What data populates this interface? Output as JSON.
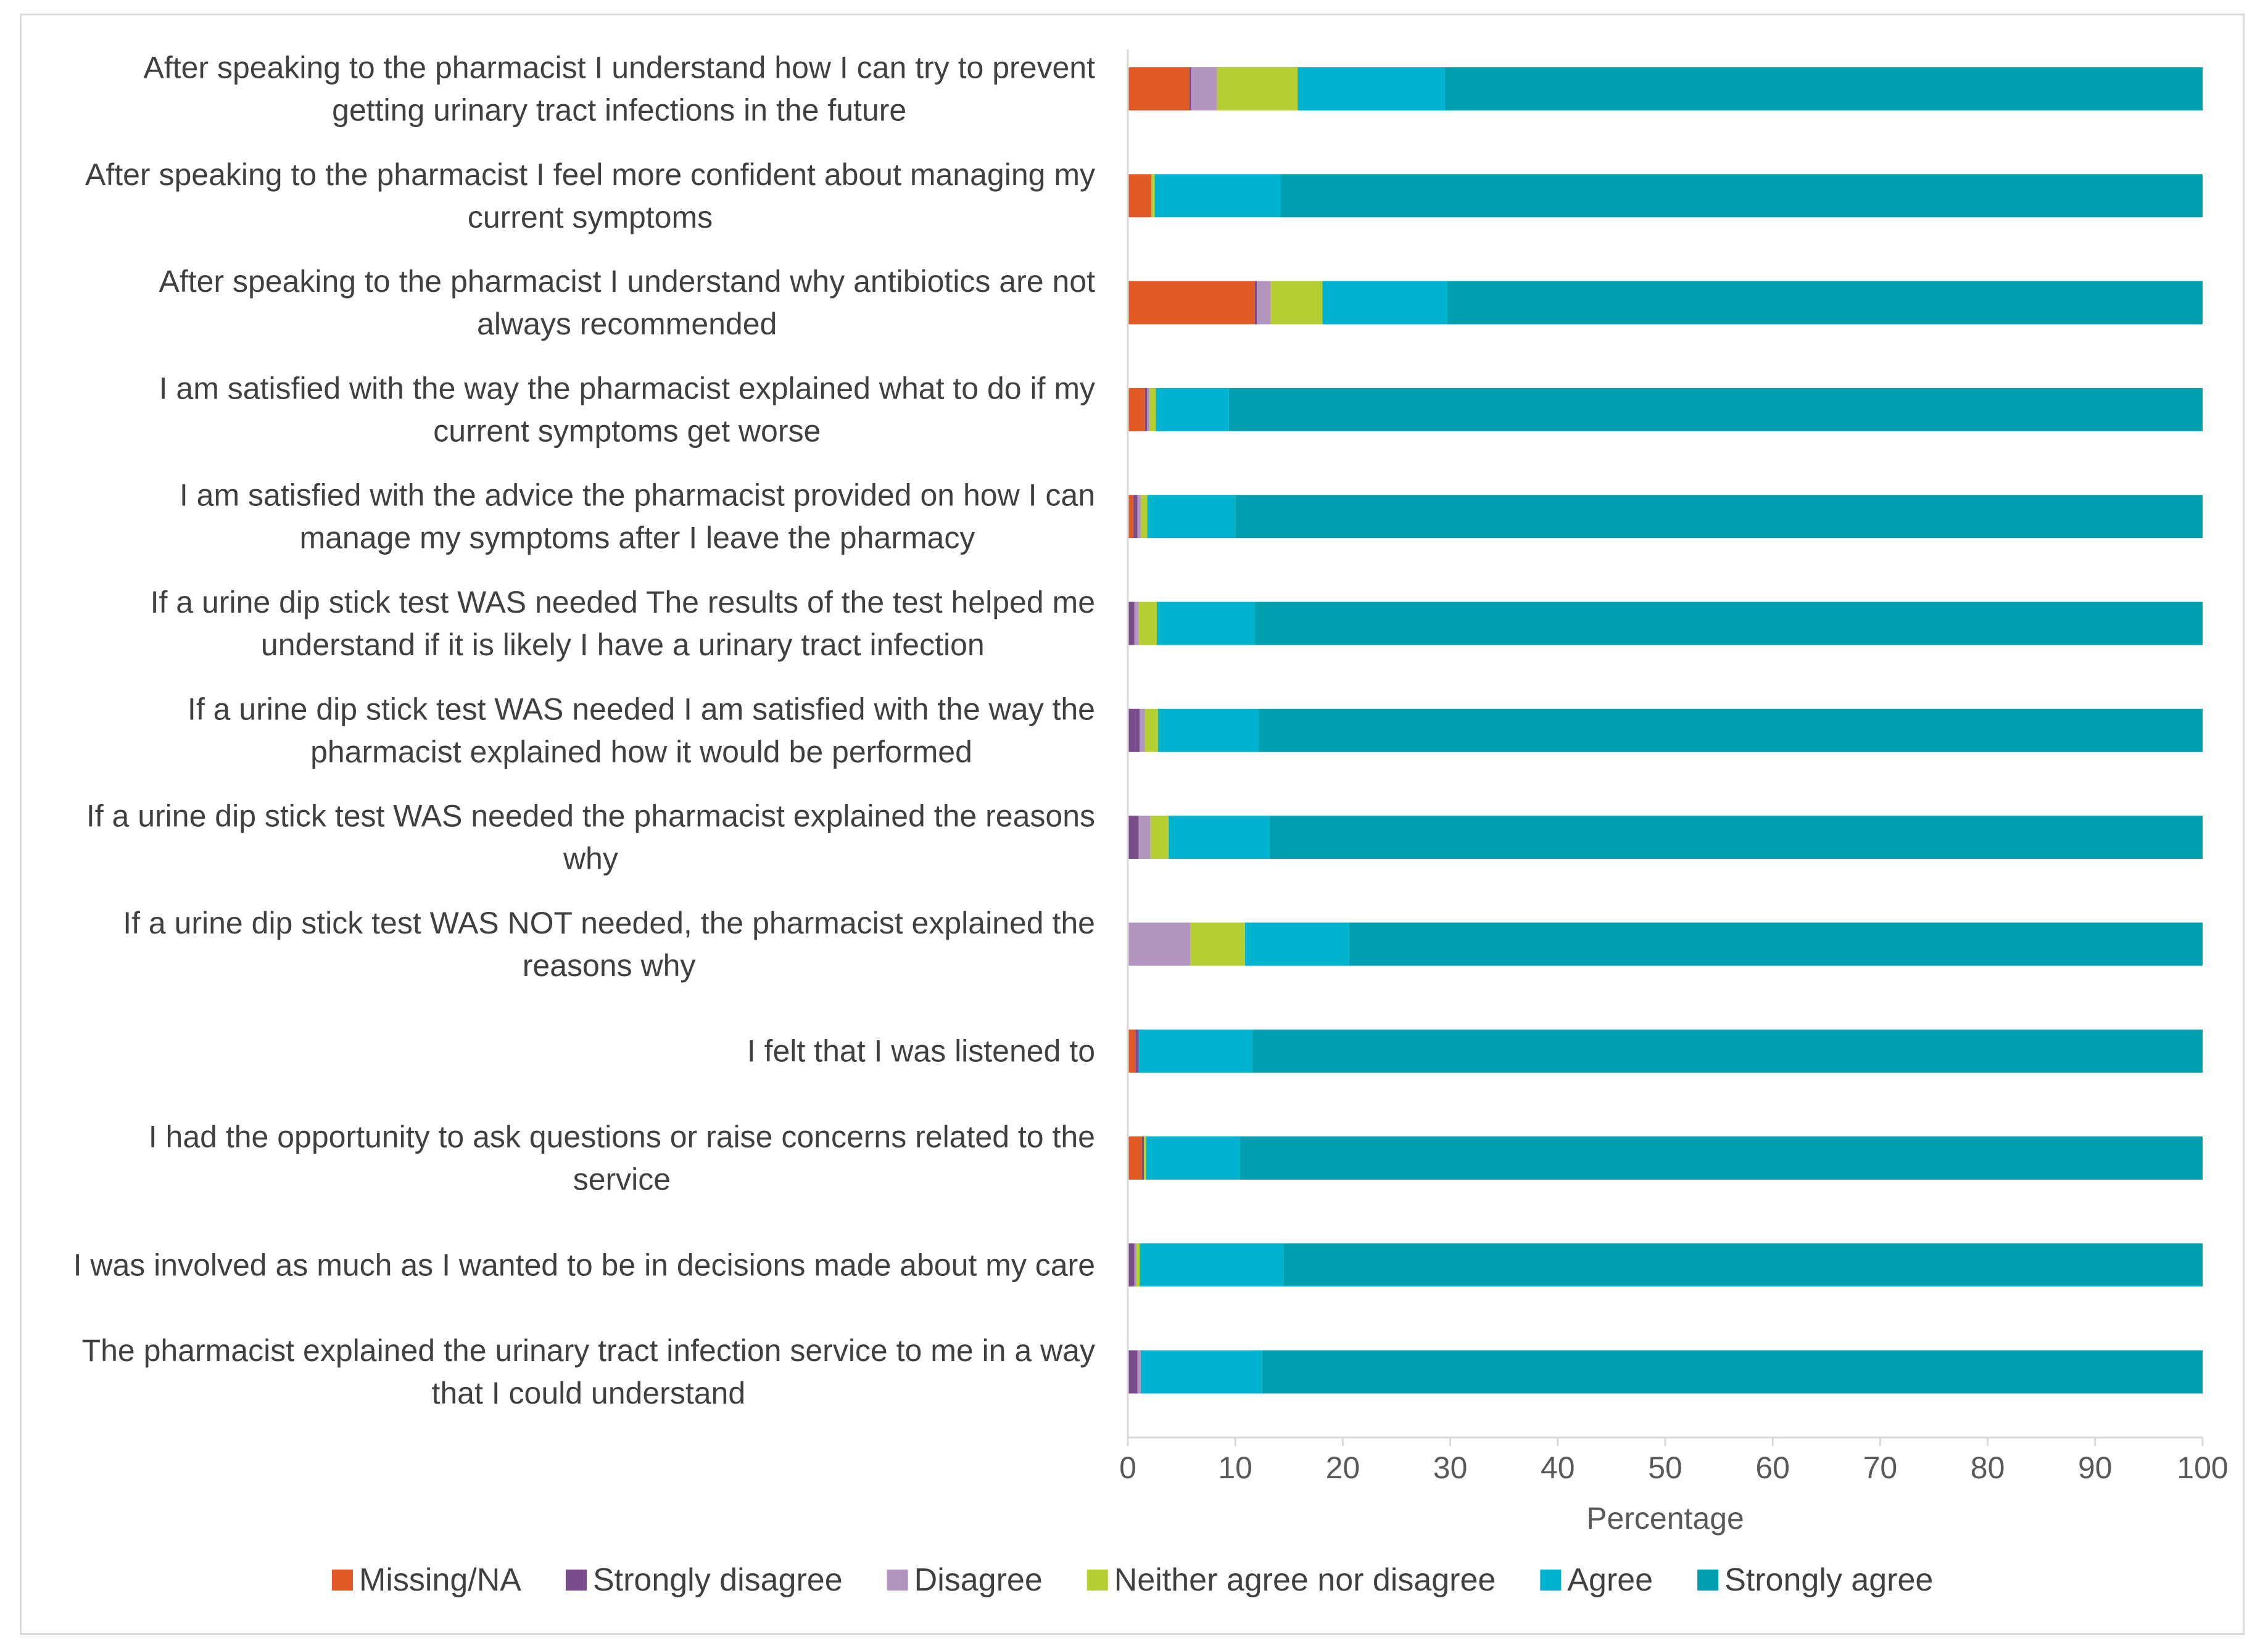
{
  "chart_data": {
    "type": "bar",
    "orientation": "horizontal",
    "stacked": true,
    "title": "",
    "xlabel": "Percentage",
    "ylabel": "",
    "xlim": [
      0,
      100
    ],
    "xticks": [
      "0",
      "10",
      "20",
      "30",
      "40",
      "50",
      "60",
      "70",
      "80",
      "90",
      "100"
    ],
    "grid": false,
    "legend_position": "bottom",
    "categories": [
      [
        "After speaking to the pharmacist I understand how I can try to prevent",
        "getting urinary tract infections in the future"
      ],
      [
        "After speaking to the pharmacist I feel more confident about managing my",
        "current symptoms"
      ],
      [
        "After speaking to the pharmacist I understand why antibiotics are not",
        "always recommended"
      ],
      [
        "I am satisfied with the way the pharmacist explained what to do if my",
        "current symptoms get worse"
      ],
      [
        "I am satisfied with the advice the pharmacist provided on how I can",
        "manage my symptoms after I leave the pharmacy"
      ],
      [
        "If a urine dip stick test WAS needed The results of the test helped me",
        "understand if it is likely I have a urinary tract infection"
      ],
      [
        "If a urine dip stick test WAS needed I am satisfied with the way the",
        "pharmacist explained how it would be performed"
      ],
      [
        "If a urine dip stick test WAS needed the pharmacist explained the reasons",
        "why"
      ],
      [
        "If a urine dip stick test WAS NOT needed, the pharmacist explained the",
        "reasons why"
      ],
      [
        "I felt that I was listened to"
      ],
      [
        "I had the opportunity to ask questions or raise concerns related to the",
        "service"
      ],
      [
        "I was involved as much as I wanted to be in decisions made about my care"
      ],
      [
        "The pharmacist explained the urinary tract infection service to me in a way",
        "that I could understand"
      ]
    ],
    "series": [
      {
        "name": "Missing/NA",
        "color": "#e05a26",
        "values": [
          5.7,
          2.2,
          11.8,
          1.6,
          0.5,
          0.0,
          0.0,
          0.0,
          0.0,
          0.7,
          1.3,
          0.0,
          0.0
        ]
      },
      {
        "name": "Strongly disagree",
        "color": "#7a4c8c",
        "values": [
          0.2,
          0.0,
          0.2,
          0.2,
          0.4,
          0.6,
          1.1,
          1.0,
          0.0,
          0.3,
          0.2,
          0.6,
          0.9
        ]
      },
      {
        "name": "Disagree",
        "color": "#b296bf",
        "values": [
          2.4,
          0.0,
          1.3,
          0.2,
          0.3,
          0.4,
          0.5,
          1.1,
          5.8,
          0.0,
          0.0,
          0.2,
          0.3
        ]
      },
      {
        "name": "Neither agree nor disagree",
        "color": "#b5cf33",
        "values": [
          7.5,
          0.3,
          4.8,
          0.6,
          0.6,
          1.7,
          1.2,
          1.7,
          5.1,
          0.0,
          0.2,
          0.3,
          0.0
        ]
      },
      {
        "name": "Agree",
        "color": "#00b4d0",
        "values": [
          13.7,
          11.7,
          11.6,
          6.8,
          8.2,
          9.1,
          9.4,
          9.4,
          9.7,
          10.6,
          8.7,
          13.4,
          11.3
        ]
      },
      {
        "name": "Strongly agree",
        "color": "#00a0b1",
        "values": [
          70.5,
          85.8,
          70.3,
          90.6,
          90.0,
          88.2,
          87.8,
          86.8,
          79.4,
          88.4,
          89.6,
          85.5,
          87.5
        ]
      }
    ]
  }
}
